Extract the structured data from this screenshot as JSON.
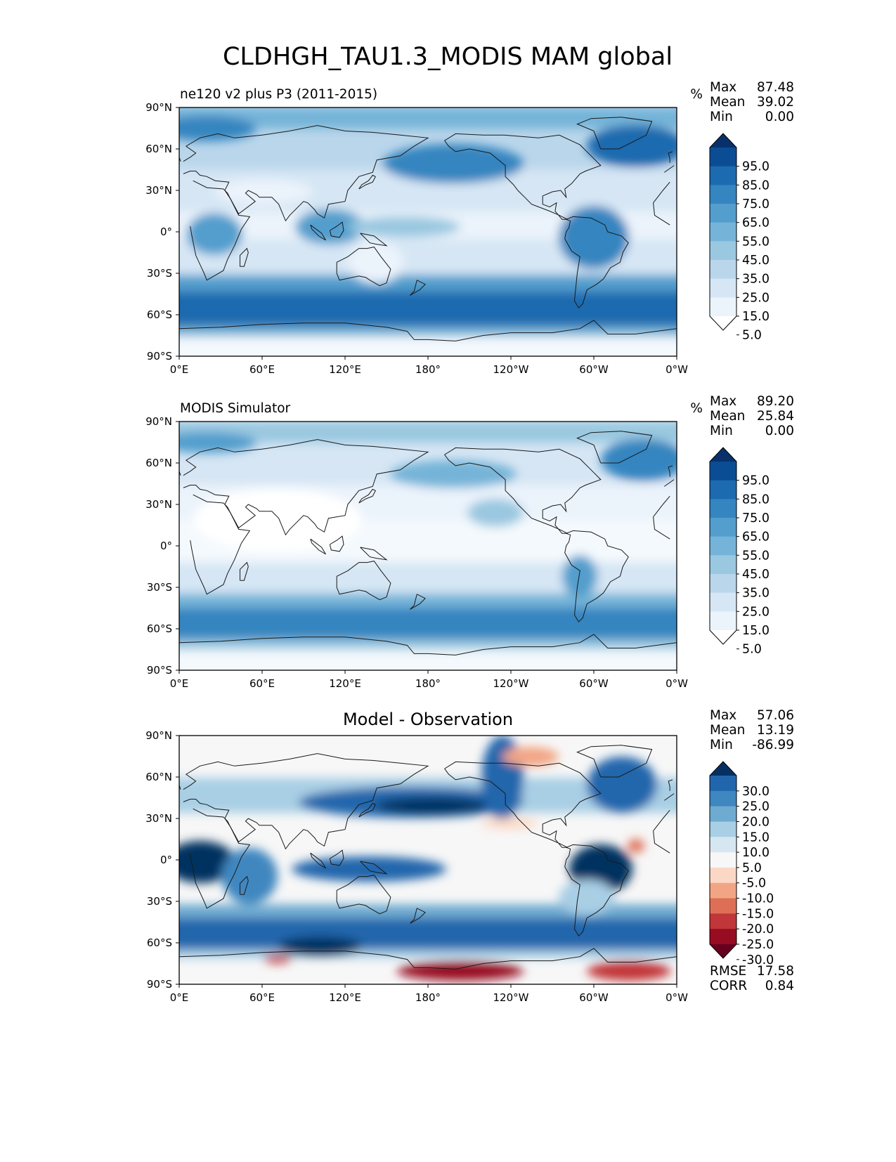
{
  "title": "CLDHGH_TAU1.3_MODIS MAM global",
  "lon_ticks": [
    "0°E",
    "60°E",
    "120°E",
    "180°",
    "120°W",
    "60°W",
    "0°W"
  ],
  "lat_ticks": [
    "90°N",
    "60°N",
    "30°N",
    "0°",
    "30°S",
    "60°S",
    "90°S"
  ],
  "panels": [
    {
      "id": "test",
      "title_left": "ne120 v2 plus P3 (2011-2015)",
      "units": "%",
      "stats": {
        "max_label": "Max",
        "max": "87.48",
        "mean_label": "Mean",
        "mean": "39.02",
        "min_label": "Min",
        "min": "0.00"
      },
      "colorbar": {
        "labels": [
          "95.0",
          "85.0",
          "75.0",
          "65.0",
          "55.0",
          "45.0",
          "35.0",
          "25.0",
          "15.0",
          "5.0"
        ],
        "colors": [
          "#08306b",
          "#0b4d94",
          "#1c6aaf",
          "#3585c0",
          "#539ecd",
          "#75b4d8",
          "#9ac8e0",
          "#bad6eb",
          "#d6e6f4",
          "#ebf3fb",
          "#ffffff"
        ]
      }
    },
    {
      "id": "ref",
      "title_left": "MODIS Simulator",
      "units": "%",
      "stats": {
        "max_label": "Max",
        "max": "89.20",
        "mean_label": "Mean",
        "mean": "25.84",
        "min_label": "Min",
        "min": "0.00"
      },
      "colorbar": {
        "labels": [
          "95.0",
          "85.0",
          "75.0",
          "65.0",
          "55.0",
          "45.0",
          "35.0",
          "25.0",
          "15.0",
          "5.0"
        ],
        "colors": [
          "#08306b",
          "#0b4d94",
          "#1c6aaf",
          "#3585c0",
          "#539ecd",
          "#75b4d8",
          "#9ac8e0",
          "#bad6eb",
          "#d6e6f4",
          "#ebf3fb",
          "#ffffff"
        ]
      }
    },
    {
      "id": "diff",
      "title_center": "Model - Observation",
      "stats": {
        "max_label": "Max",
        "max": "57.06",
        "mean_label": "Mean",
        "mean": "13.19",
        "min_label": "Min",
        "min": "-86.99"
      },
      "extra_stats": {
        "rmse_label": "RMSE",
        "rmse": "17.58",
        "corr_label": "CORR",
        "corr": "0.84"
      },
      "colorbar": {
        "labels": [
          "30.0",
          "25.0",
          "20.0",
          "15.0",
          "10.0",
          "5.0",
          "-5.0",
          "-10.0",
          "-15.0",
          "-20.0",
          "-25.0",
          "-30.0"
        ],
        "colors": [
          "#053061",
          "#2166ac",
          "#3f87c0",
          "#6fabd0",
          "#a9cfe5",
          "#d6e7f1",
          "#f7f7f7",
          "#fbd8c5",
          "#f2a585",
          "#de6f56",
          "#c13639",
          "#980c22",
          "#67001f"
        ]
      }
    }
  ]
}
